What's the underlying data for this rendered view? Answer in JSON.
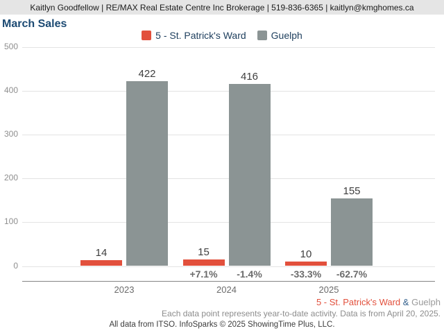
{
  "header": {
    "contact_line": "Kaitlyn Goodfellow | RE/MAX Real Estate Centre Inc Brokerage | 519-836-6365 | kaitlyn@kmghomes.ca"
  },
  "title": "March Sales",
  "chart_data": {
    "type": "bar",
    "title": "March Sales",
    "categories": [
      "2023",
      "2024",
      "2025"
    ],
    "series": [
      {
        "name": "5 - St. Patrick's Ward",
        "color": "#e2503c",
        "values": [
          14,
          15,
          10
        ],
        "pct_change": [
          null,
          "+7.1%",
          "-33.3%"
        ]
      },
      {
        "name": "Guelph",
        "color": "#8b9494",
        "values": [
          422,
          416,
          155
        ],
        "pct_change": [
          null,
          "-1.4%",
          "-62.7%"
        ]
      }
    ],
    "ylim": [
      0,
      500
    ],
    "yticks": [
      0,
      100,
      200,
      300,
      400,
      500
    ],
    "grid": true,
    "legend_position": "top"
  },
  "colors": {
    "ward_red": "#e2503c",
    "guelph_bar_gray": "#8b9494",
    "title_navy": "#1c4a73",
    "footer_amp_blue": "#34618d",
    "footer_guelph_gray": "#9a9a9a"
  },
  "footer": {
    "series_joiner": "&",
    "data_note": "Each data point represents year-to-date activity. Data is from April 20, 2025.",
    "attribution": "All data from ITSO. InfoSparks © 2025 ShowingTime Plus, LLC."
  }
}
